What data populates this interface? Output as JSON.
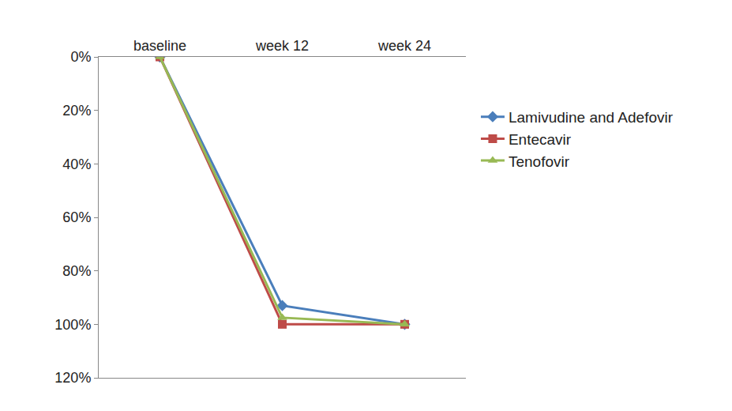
{
  "chart_data": {
    "type": "line",
    "categories": [
      "baseline",
      "week 12",
      "week 24"
    ],
    "series": [
      {
        "name": "Lamivudine and Adefovir",
        "color": "#4a7ebb",
        "marker": "diamond",
        "values": [
          0,
          93,
          100
        ]
      },
      {
        "name": "Entecavir",
        "color": "#be4b48",
        "marker": "square",
        "values": [
          0,
          100,
          100
        ]
      },
      {
        "name": "Tenofovir",
        "color": "#98b954",
        "marker": "triangle-up",
        "values": [
          0,
          97.5,
          100
        ]
      }
    ],
    "ylim": [
      120,
      0
    ],
    "yticks": [
      {
        "value": 0,
        "label": "0%"
      },
      {
        "value": 20,
        "label": "20%"
      },
      {
        "value": 40,
        "label": "40%"
      },
      {
        "value": 60,
        "label": "60%"
      },
      {
        "value": 80,
        "label": "80%"
      },
      {
        "value": 100,
        "label": "100%"
      },
      {
        "value": 120,
        "label": "120%"
      }
    ],
    "grid": false,
    "legend": "right"
  }
}
